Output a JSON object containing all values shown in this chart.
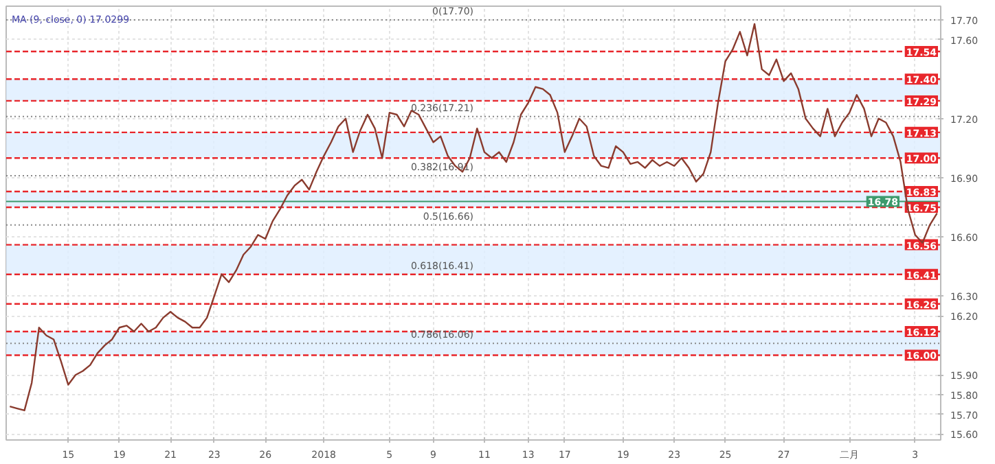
{
  "chart_data": {
    "type": "line",
    "annotations": [
      "MA (9, close, 0)  17.0299",
      {
        "text": "0.618(16.41)",
        "y": 16.41
      }
    ],
    "categories": [
      null,
      null,
      null,
      null,
      null,
      null,
      null,
      null,
      "15",
      null,
      null,
      null,
      null,
      null,
      null,
      "19",
      null,
      null,
      null,
      null,
      null,
      null,
      "21",
      null,
      null,
      null,
      null,
      null,
      "23",
      null,
      null,
      null,
      null,
      null,
      null,
      "26",
      null,
      null,
      null,
      null,
      null,
      null,
      null,
      "2018",
      null,
      null,
      null,
      null,
      null,
      null,
      null,
      null,
      "5",
      null,
      null,
      null,
      null,
      null,
      "9",
      null,
      null,
      null,
      null,
      null,
      null,
      "11",
      null,
      null,
      null,
      null,
      null,
      "13",
      null,
      null,
      null,
      null,
      "17",
      null,
      null,
      null,
      null,
      null,
      null,
      null,
      "19",
      null,
      null,
      null,
      null,
      null,
      null,
      "23",
      null,
      null,
      null,
      null,
      null,
      null,
      "25",
      null,
      null,
      null,
      null,
      null,
      null,
      null,
      "27",
      null,
      null,
      null,
      null,
      null,
      null,
      null,
      null,
      "二月",
      null,
      null,
      null,
      null,
      null,
      null,
      null,
      null,
      "3",
      null,
      null,
      null
    ],
    "series": [
      {
        "color": "#8a3b2e",
        "values": [
          15.74,
          15.73,
          15.72,
          15.86,
          16.14,
          16.1,
          16.08,
          15.97,
          15.85,
          15.9,
          15.92,
          15.95,
          16.01,
          16.05,
          16.08,
          16.14,
          16.15,
          16.12,
          16.16,
          16.12,
          16.14,
          16.19,
          16.22,
          16.19,
          16.17,
          16.14,
          16.14,
          16.19,
          16.3,
          16.41,
          16.37,
          16.43,
          16.51,
          16.55,
          16.61,
          16.59,
          16.68,
          16.74,
          16.81,
          16.86,
          16.89,
          16.84,
          16.93,
          17.01,
          17.08,
          17.16,
          17.2,
          17.03,
          17.14,
          17.22,
          17.15,
          17.0,
          17.23,
          17.22,
          17.16,
          17.24,
          17.22,
          17.15,
          17.08,
          17.11,
          17.01,
          16.96,
          16.93,
          17.0,
          17.15,
          17.03,
          17.0,
          17.03,
          16.98,
          17.08,
          17.22,
          17.28,
          17.36,
          17.35,
          17.32,
          17.23,
          17.03,
          17.11,
          17.2,
          17.16,
          17.01,
          16.96,
          16.95,
          17.06,
          17.03,
          16.97,
          16.98,
          16.95,
          16.99,
          16.96,
          16.98,
          16.96,
          17.0,
          16.95,
          16.88,
          16.92,
          17.03,
          17.28,
          17.49,
          17.55,
          17.64,
          17.52,
          17.68,
          17.45,
          17.42,
          17.5,
          17.39,
          17.43,
          17.35,
          17.2,
          17.15,
          17.11,
          17.25,
          17.11,
          17.18,
          17.23,
          17.32,
          17.25,
          17.11,
          17.2,
          17.18,
          17.11,
          16.98,
          16.74,
          16.61,
          16.57,
          16.66,
          16.72
        ]
      }
    ],
    "ylim": [
      15.57,
      17.77
    ],
    "yticks": [
      {
        "value": 15.6,
        "label": "15.60"
      },
      {
        "value": 15.7,
        "label": "15.70"
      },
      {
        "value": 15.8,
        "label": "15.80"
      },
      {
        "value": 15.9,
        "label": "15.90"
      },
      {
        "value": 16.2,
        "label": "16.20"
      },
      {
        "value": 16.3,
        "label": "16.30"
      },
      {
        "value": 16.6,
        "label": "16.60"
      },
      {
        "value": 16.9,
        "label": "16.90"
      },
      {
        "value": 17.2,
        "label": "17.20"
      },
      {
        "value": 17.6,
        "label": "17.60"
      },
      {
        "value": 17.7,
        "label": "17.70"
      }
    ],
    "grid": true,
    "ref_lines": [
      {
        "axis": "y",
        "value": 17.7,
        "label": "0(17.70)",
        "color": "#888888",
        "line_style": "dotted"
      },
      {
        "axis": "y",
        "value": 17.21,
        "label": "0.236(17.21)",
        "color": "#888888",
        "line_style": "dotted"
      },
      {
        "axis": "y",
        "value": 16.91,
        "label": "0.382(16.91)",
        "color": "#888888",
        "line_style": "dotted"
      },
      {
        "axis": "y",
        "value": 16.66,
        "label": "0.5(16.66)",
        "color": "#888888",
        "line_style": "dotted"
      },
      {
        "axis": "y",
        "value": 16.06,
        "label": "0.786(16.06)",
        "color": "#888888",
        "line_style": "dotted"
      },
      {
        "axis": "y",
        "value": 17.54,
        "label": "17.54",
        "color": "#e8262b",
        "line_style": "dashed"
      },
      {
        "axis": "y",
        "value": 17.4,
        "label": "17.40",
        "color": "#e8262b",
        "line_style": "dashed"
      },
      {
        "axis": "y",
        "value": 17.29,
        "label": "17.29",
        "color": "#e8262b",
        "line_style": "dashed"
      },
      {
        "axis": "y",
        "value": 17.13,
        "label": "17.13",
        "color": "#e8262b",
        "line_style": "dashed"
      },
      {
        "axis": "y",
        "value": 17.0,
        "label": "17.00",
        "color": "#e8262b",
        "line_style": "dashed"
      },
      {
        "axis": "y",
        "value": 16.83,
        "label": "16.83",
        "color": "#e8262b",
        "line_style": "dashed"
      },
      {
        "axis": "y",
        "value": 16.78,
        "label": "16.78",
        "color": "#3c9a6c",
        "line_style": "solid"
      },
      {
        "axis": "y",
        "value": 16.75,
        "label": "16.75",
        "color": "#e8262b",
        "line_style": "dashed"
      },
      {
        "axis": "y",
        "value": 16.56,
        "label": "16.56",
        "color": "#e8262b",
        "line_style": "dashed"
      },
      {
        "axis": "y",
        "value": 16.41,
        "label": "16.41",
        "color": "#e8262b",
        "line_style": "dashed"
      },
      {
        "axis": "y",
        "value": 16.26,
        "label": "16.26",
        "color": "#e8262b",
        "line_style": "dashed"
      },
      {
        "axis": "y",
        "value": 16.12,
        "label": "16.12",
        "color": "#e8262b",
        "line_style": "dashed"
      },
      {
        "axis": "y",
        "value": 16.0,
        "label": "16.00",
        "color": "#e8262b",
        "line_style": "dashed"
      }
    ],
    "bands": [
      {
        "axis": "y",
        "from": 17.29,
        "to": 17.4,
        "color": "#ddeeff"
      },
      {
        "axis": "y",
        "from": 17.0,
        "to": 17.13,
        "color": "#ddeeff"
      },
      {
        "axis": "y",
        "from": 16.75,
        "to": 16.83,
        "color": "#ddeeff"
      },
      {
        "axis": "y",
        "from": 16.41,
        "to": 16.56,
        "color": "#ddeeff"
      },
      {
        "axis": "y",
        "from": 16.0,
        "to": 16.12,
        "color": "#ddeeff"
      }
    ]
  }
}
